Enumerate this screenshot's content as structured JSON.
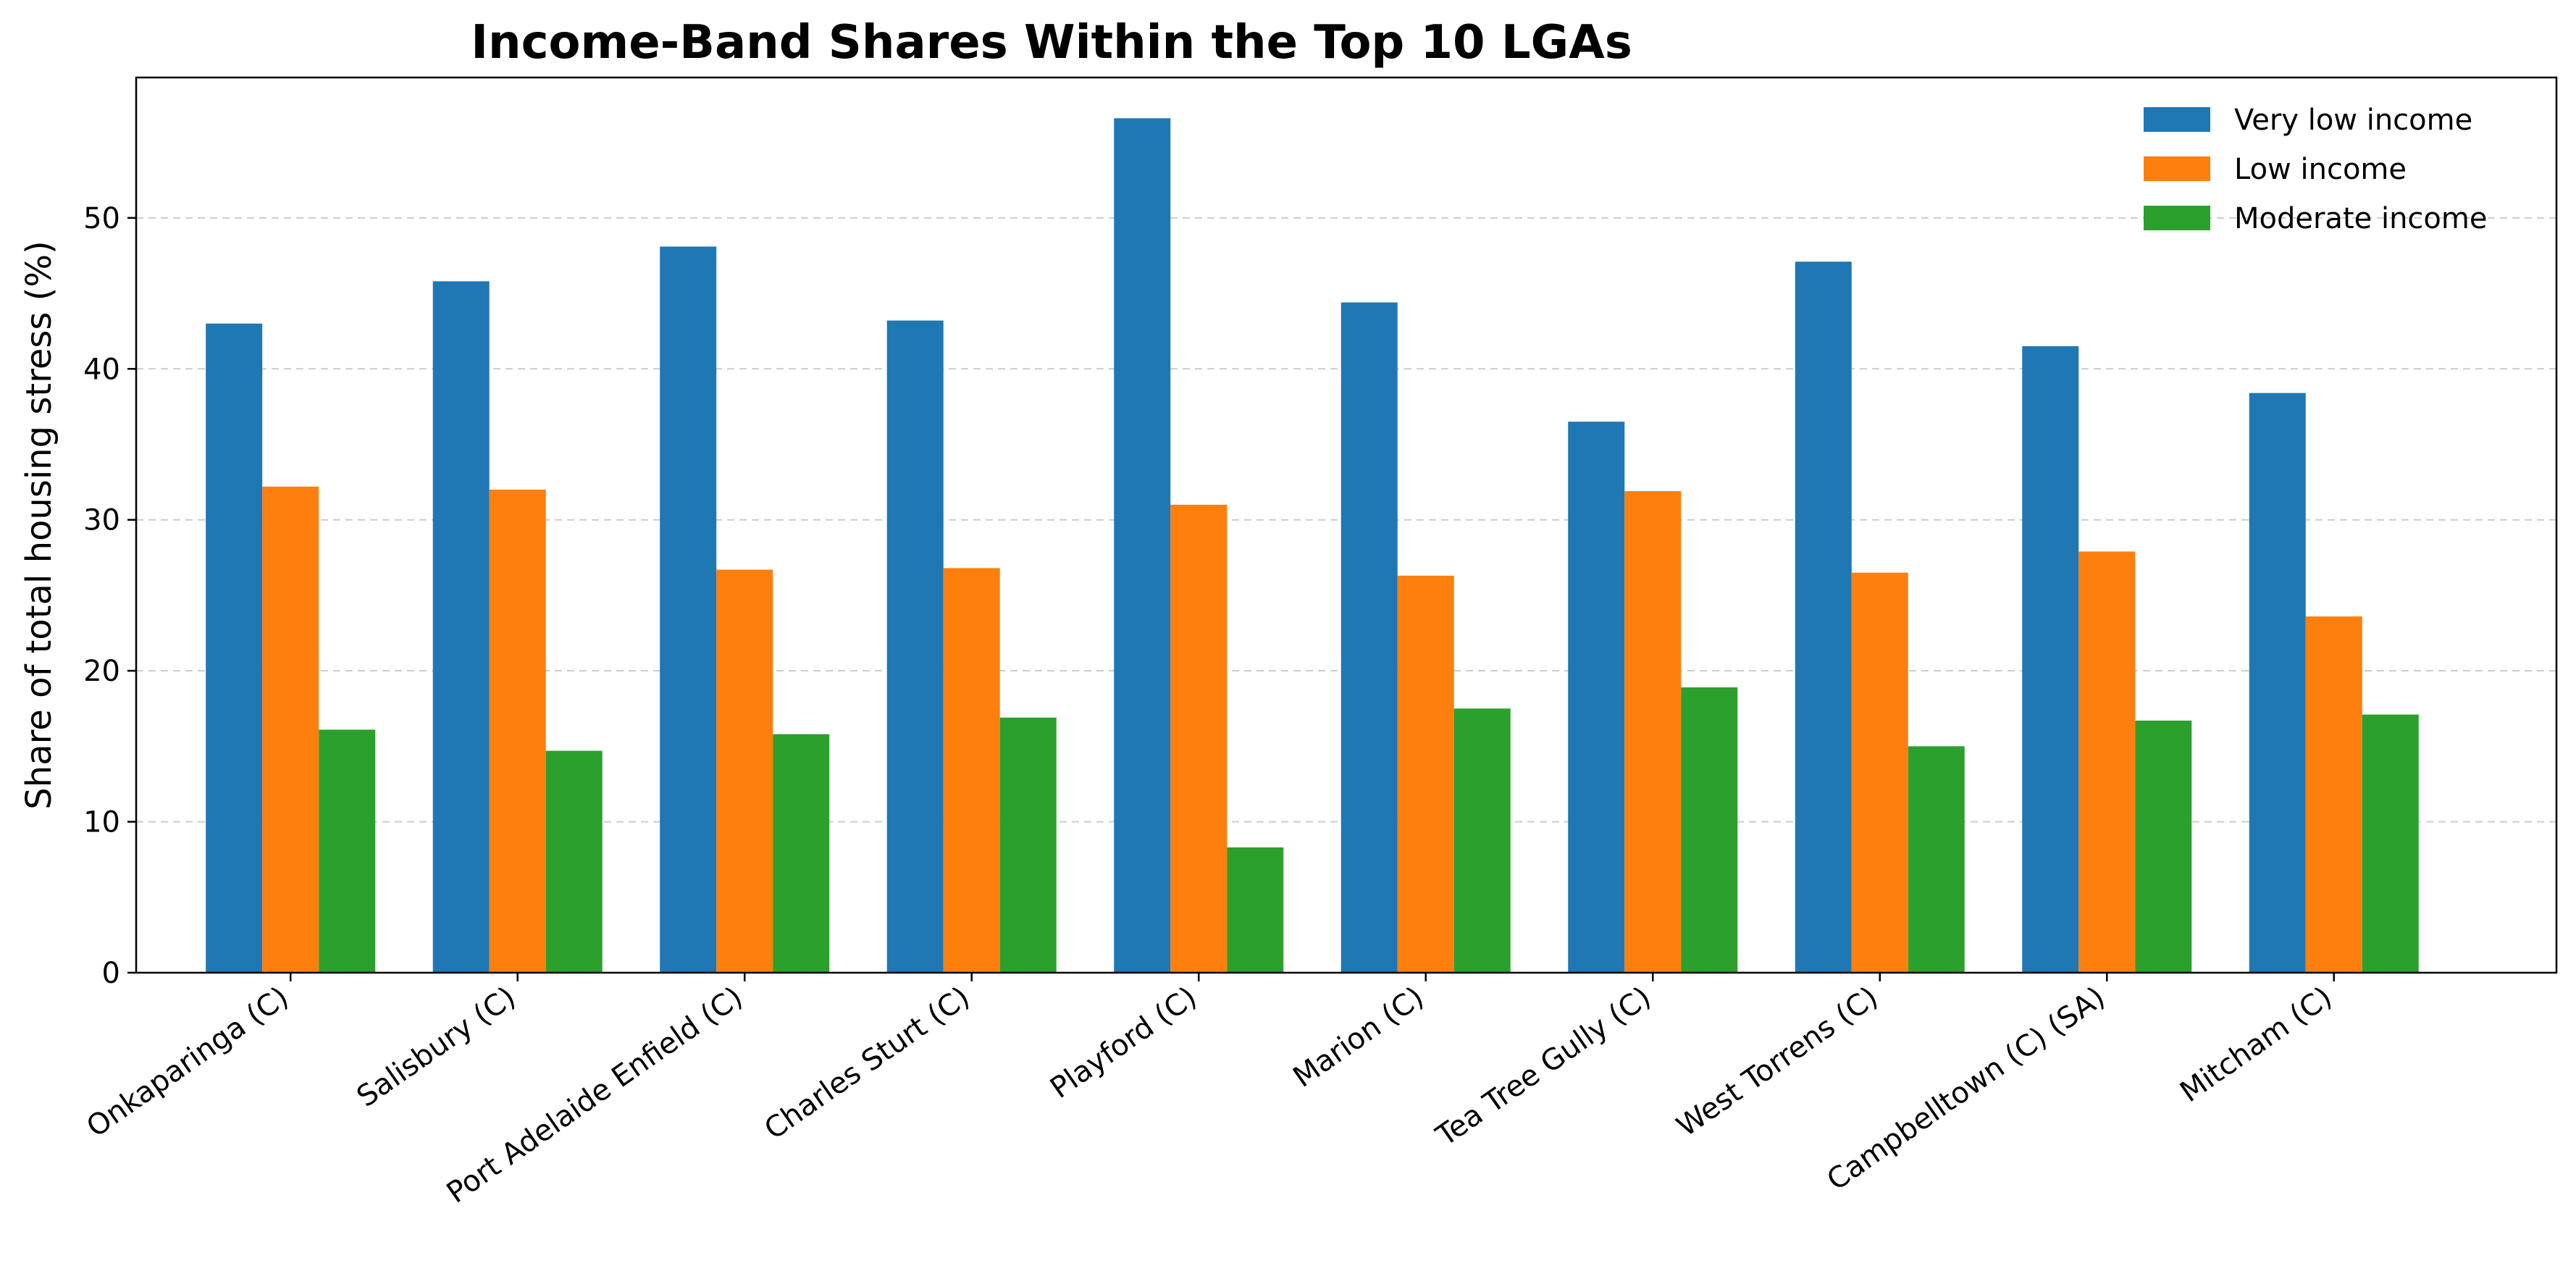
{
  "chart_data": {
    "type": "bar",
    "title": "Income-Band Shares Within the Top 10 LGAs",
    "xlabel": "",
    "ylabel": "Share of total housing stress (%)",
    "ylim": [
      0,
      59.3
    ],
    "yticks": [
      0,
      10,
      20,
      30,
      40,
      50
    ],
    "grid": "y-dashed",
    "legend_position": "top-right",
    "categories": [
      "Onkaparinga (C)",
      "Salisbury (C)",
      "Port Adelaide Enfield (C)",
      "Charles Sturt (C)",
      "Playford (C)",
      "Marion (C)",
      "Tea Tree Gully (C)",
      "West Torrens (C)",
      "Campbelltown (C) (SA)",
      "Mitcham (C)"
    ],
    "series": [
      {
        "name": "Very low income",
        "color": "#1f77b4",
        "values": [
          43.0,
          45.8,
          48.1,
          43.2,
          56.6,
          44.4,
          36.5,
          47.1,
          41.5,
          38.4
        ]
      },
      {
        "name": "Low income",
        "color": "#ff7f0e",
        "values": [
          32.2,
          32.0,
          26.7,
          26.8,
          31.0,
          26.3,
          31.9,
          26.5,
          27.9,
          23.6
        ]
      },
      {
        "name": "Moderate income",
        "color": "#2ca02c",
        "values": [
          16.1,
          14.7,
          15.8,
          16.9,
          8.3,
          17.5,
          18.9,
          15.0,
          16.7,
          17.1
        ]
      }
    ]
  }
}
